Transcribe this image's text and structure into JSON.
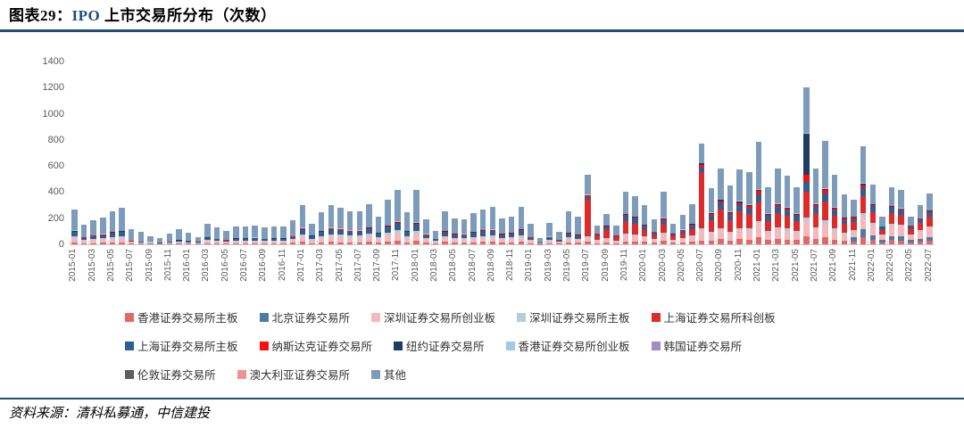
{
  "header": {
    "figure_prefix": "图表29：",
    "title_latin": "IPO",
    "title_rest": " 上市交易所分布（次数）"
  },
  "source_note": "资料来源：清科私募通，中信建投",
  "colors": {
    "rule": "#1f4e79",
    "axis_text": "#595959",
    "title_latin": "#1f4e79"
  },
  "chart_data": {
    "type": "bar",
    "stacked": true,
    "title": "IPO 上市交易所分布（次数）",
    "grid": false,
    "legend_position": "bottom",
    "ylim": [
      0,
      1400
    ],
    "yticks": [
      0,
      200,
      400,
      600,
      800,
      1000,
      1200,
      1400
    ],
    "x_start": "2015-01",
    "x_end": "2022-07",
    "x_label_step_months": 2,
    "x_labels": [
      "2015-01",
      "2015-03",
      "2015-05",
      "2015-07",
      "2015-09",
      "2015-11",
      "2016-01",
      "2016-03",
      "2016-05",
      "2016-07",
      "2016-09",
      "2016-11",
      "2017-01",
      "2017-03",
      "2017-05",
      "2017-07",
      "2017-09",
      "2017-11",
      "2018-01",
      "2018-03",
      "2018-05",
      "2018-07",
      "2018-09",
      "2018-11",
      "2019-01",
      "2019-03",
      "2019-05",
      "2019-07",
      "2019-09",
      "2019-11",
      "2020-01",
      "2020-03",
      "2020-05",
      "2020-07",
      "2020-09",
      "2020-11",
      "2021-01",
      "2021-03",
      "2021-05",
      "2021-07",
      "2021-09",
      "2021-11",
      "2022-01",
      "2022-03",
      "2022-05",
      "2022-07"
    ],
    "legend_rows": [
      [
        0,
        1,
        2,
        3,
        4
      ],
      [
        5,
        6,
        7,
        8,
        9
      ],
      [
        10,
        11,
        12
      ]
    ],
    "series": [
      {
        "key": "hk_main",
        "label": "香港证券交易所主板",
        "color": "#e26868",
        "values": [
          15,
          8,
          10,
          12,
          14,
          15,
          8,
          6,
          5,
          4,
          6,
          8,
          6,
          4,
          10,
          8,
          6,
          9,
          9,
          9,
          8,
          9,
          9,
          12,
          18,
          10,
          15,
          18,
          17,
          15,
          15,
          19,
          13,
          21,
          25,
          15,
          29,
          14,
          7,
          18,
          14,
          14,
          17,
          19,
          20,
          14,
          15,
          20,
          10,
          3,
          10,
          6,
          15,
          13,
          20,
          9,
          14,
          8,
          24,
          22,
          20,
          13,
          27,
          11,
          15,
          21,
          30,
          29,
          39,
          30,
          38,
          37,
          55,
          31,
          41,
          37,
          31,
          60,
          41,
          55,
          37,
          27,
          24,
          53,
          32,
          15,
          31,
          29,
          15,
          21,
          27
        ]
      },
      {
        "key": "beijing",
        "label": "北京证券交易所",
        "color": "#4d7ba3",
        "values": [
          0,
          0,
          0,
          0,
          0,
          0,
          0,
          0,
          0,
          0,
          0,
          0,
          0,
          0,
          0,
          0,
          0,
          0,
          0,
          0,
          0,
          0,
          0,
          0,
          0,
          0,
          0,
          0,
          0,
          0,
          0,
          0,
          0,
          0,
          0,
          0,
          0,
          0,
          0,
          0,
          0,
          0,
          0,
          0,
          0,
          0,
          0,
          0,
          0,
          0,
          0,
          0,
          0,
          0,
          0,
          0,
          0,
          0,
          0,
          0,
          0,
          0,
          0,
          0,
          0,
          0,
          0,
          0,
          0,
          0,
          0,
          0,
          0,
          0,
          0,
          0,
          0,
          0,
          0,
          0,
          0,
          0,
          30,
          65,
          35,
          16,
          33,
          32,
          16,
          23,
          30
        ]
      },
      {
        "key": "sz_chinext",
        "label": "深圳证券交易所创业板",
        "color": "#f5b8bb",
        "values": [
          35,
          18,
          22,
          26,
          30,
          34,
          6,
          5,
          4,
          3,
          5,
          8,
          8,
          5,
          16,
          13,
          10,
          14,
          14,
          15,
          13,
          14,
          14,
          19,
          45,
          24,
          37,
          45,
          42,
          38,
          38,
          46,
          32,
          52,
          62,
          37,
          55,
          25,
          14,
          33,
          26,
          25,
          31,
          35,
          37,
          26,
          28,
          38,
          18,
          5,
          18,
          10,
          28,
          23,
          30,
          16,
          26,
          14,
          45,
          41,
          36,
          23,
          49,
          19,
          27,
          37,
          80,
          52,
          70,
          54,
          69,
          67,
          102,
          57,
          75,
          68,
          57,
          120,
          75,
          103,
          69,
          49,
          44,
          97,
          83,
          38,
          79,
          76,
          39,
          54,
          70
        ]
      },
      {
        "key": "sz_main",
        "label": "深圳证券交易所主板",
        "color": "#b7cbdc",
        "values": [
          14,
          8,
          10,
          10,
          12,
          14,
          4,
          3,
          2,
          2,
          3,
          4,
          3,
          2,
          6,
          5,
          4,
          5,
          5,
          6,
          5,
          5,
          5,
          7,
          15,
          8,
          12,
          15,
          14,
          13,
          13,
          16,
          11,
          17,
          21,
          12,
          17,
          8,
          4,
          10,
          8,
          8,
          10,
          11,
          11,
          8,
          9,
          12,
          6,
          2,
          7,
          4,
          10,
          8,
          10,
          6,
          9,
          5,
          16,
          15,
          9,
          6,
          12,
          5,
          7,
          9,
          15,
          13,
          17,
          14,
          17,
          17,
          24,
          13,
          17,
          16,
          13,
          24,
          17,
          24,
          16,
          11,
          10,
          22,
          14,
          6,
          13,
          13,
          6,
          9,
          12
        ]
      },
      {
        "key": "star",
        "label": "上海证券交易所科创板",
        "color": "#e02a2a",
        "values": [
          0,
          0,
          0,
          0,
          0,
          0,
          0,
          0,
          0,
          0,
          0,
          0,
          0,
          0,
          0,
          0,
          0,
          0,
          0,
          0,
          0,
          0,
          0,
          0,
          0,
          0,
          0,
          0,
          0,
          0,
          0,
          0,
          0,
          0,
          0,
          0,
          0,
          0,
          0,
          0,
          0,
          0,
          0,
          0,
          0,
          0,
          0,
          0,
          0,
          0,
          0,
          0,
          0,
          0,
          280,
          30,
          60,
          25,
          90,
          80,
          45,
          30,
          60,
          24,
          34,
          50,
          430,
          90,
          140,
          90,
          130,
          110,
          140,
          80,
          105,
          95,
          80,
          200,
          105,
          145,
          95,
          70,
          60,
          135,
          85,
          38,
          80,
          75,
          40,
          55,
          70
        ]
      },
      {
        "key": "sh_main",
        "label": "上海证券交易所主板",
        "color": "#2e5f92",
        "values": [
          30,
          16,
          20,
          22,
          28,
          30,
          6,
          5,
          4,
          3,
          5,
          8,
          9,
          5,
          16,
          13,
          10,
          14,
          14,
          15,
          13,
          14,
          14,
          19,
          36,
          19,
          29,
          36,
          34,
          30,
          31,
          37,
          25,
          41,
          50,
          29,
          50,
          23,
          13,
          30,
          24,
          23,
          29,
          32,
          34,
          24,
          26,
          35,
          16,
          5,
          17,
          10,
          25,
          21,
          25,
          15,
          24,
          13,
          41,
          37,
          24,
          16,
          32,
          13,
          18,
          25,
          35,
          34,
          46,
          36,
          46,
          44,
          63,
          35,
          46,
          42,
          35,
          72,
          46,
          63,
          42,
          30,
          27,
          60,
          46,
          21,
          44,
          42,
          22,
          30,
          39
        ]
      },
      {
        "key": "nasdaq",
        "label": "纳斯达克证券交易所",
        "color": "#ff0d0d",
        "values": [
          5,
          3,
          4,
          4,
          5,
          5,
          2,
          2,
          1,
          1,
          2,
          2,
          2,
          1,
          3,
          2,
          2,
          2,
          2,
          3,
          2,
          2,
          2,
          3,
          6,
          3,
          5,
          6,
          6,
          5,
          5,
          6,
          4,
          7,
          8,
          5,
          8,
          4,
          2,
          5,
          4,
          4,
          5,
          5,
          6,
          4,
          4,
          6,
          3,
          1,
          3,
          2,
          5,
          4,
          8,
          3,
          5,
          3,
          8,
          7,
          9,
          6,
          12,
          5,
          7,
          9,
          20,
          13,
          17,
          14,
          17,
          17,
          24,
          13,
          17,
          16,
          13,
          60,
          17,
          24,
          16,
          11,
          10,
          22,
          9,
          4,
          9,
          8,
          4,
          6,
          8
        ]
      },
      {
        "key": "nyse",
        "label": "纽约证券交易所",
        "color": "#1d3d63",
        "values": [
          5,
          3,
          3,
          4,
          5,
          5,
          2,
          2,
          1,
          1,
          1,
          2,
          2,
          1,
          3,
          2,
          2,
          2,
          2,
          2,
          2,
          2,
          2,
          3,
          5,
          3,
          4,
          5,
          5,
          4,
          4,
          5,
          4,
          6,
          7,
          4,
          7,
          3,
          2,
          4,
          3,
          3,
          4,
          5,
          5,
          3,
          4,
          5,
          3,
          1,
          3,
          2,
          4,
          4,
          6,
          3,
          4,
          2,
          7,
          7,
          6,
          4,
          8,
          3,
          5,
          6,
          10,
          9,
          12,
          9,
          12,
          11,
          12,
          7,
          9,
          8,
          7,
          310,
          9,
          12,
          8,
          6,
          5,
          11,
          2,
          1,
          2,
          2,
          1,
          1,
          2
        ]
      },
      {
        "key": "hk_gem",
        "label": "香港证券交易所创业板",
        "color": "#a5c8e4",
        "values": [
          3,
          2,
          2,
          2,
          3,
          3,
          1,
          1,
          1,
          1,
          1,
          1,
          1,
          1,
          2,
          2,
          1,
          2,
          2,
          2,
          2,
          2,
          2,
          2,
          3,
          2,
          2,
          3,
          3,
          3,
          3,
          3,
          2,
          3,
          4,
          2,
          4,
          2,
          1,
          2,
          2,
          2,
          2,
          3,
          3,
          2,
          2,
          3,
          2,
          0,
          2,
          1,
          3,
          2,
          3,
          2,
          2,
          1,
          4,
          4,
          2,
          1,
          3,
          1,
          2,
          2,
          4,
          3,
          4,
          3,
          4,
          4,
          4,
          2,
          3,
          3,
          2,
          6,
          3,
          4,
          3,
          2,
          2,
          4,
          2,
          1,
          2,
          2,
          1,
          1,
          2
        ]
      },
      {
        "key": "korea",
        "label": "韩国证券交易所",
        "color": "#9f8cc4",
        "values": []
      },
      {
        "key": "london",
        "label": "伦敦证券交易所",
        "color": "#5f5f5f",
        "values": []
      },
      {
        "key": "australia",
        "label": "澳大利亚证券交易所",
        "color": "#f29191",
        "values": []
      },
      {
        "key": "other",
        "label": "其他",
        "color": "#7d9cbb",
        "values": [
          158,
          92,
          114,
          125,
          158,
          174,
          86,
          71,
          42,
          35,
          57,
          87,
          59,
          36,
          104,
          85,
          65,
          87,
          92,
          93,
          85,
          92,
          87,
          120,
          172,
          91,
          141,
          172,
          159,
          142,
          146,
          178,
          119,
          198,
          238,
          141,
          250,
          116,
          62,
          148,
          119,
          116,
          142,
          160,
          169,
          119,
          127,
          171,
          102,
          28,
          105,
          60,
          160,
          135,
          148,
          61,
          91,
          72,
          170,
          157,
          149,
          96,
          202,
          79,
          110,
          151,
          146,
          187,
          235,
          200,
          242,
          248,
          361,
          202,
          267,
          240,
          202,
          353,
          267,
          360,
          244,
          174,
          128,
          281,
          152,
          70,
          147,
          141,
          71,
          100,
          130
        ]
      }
    ]
  }
}
